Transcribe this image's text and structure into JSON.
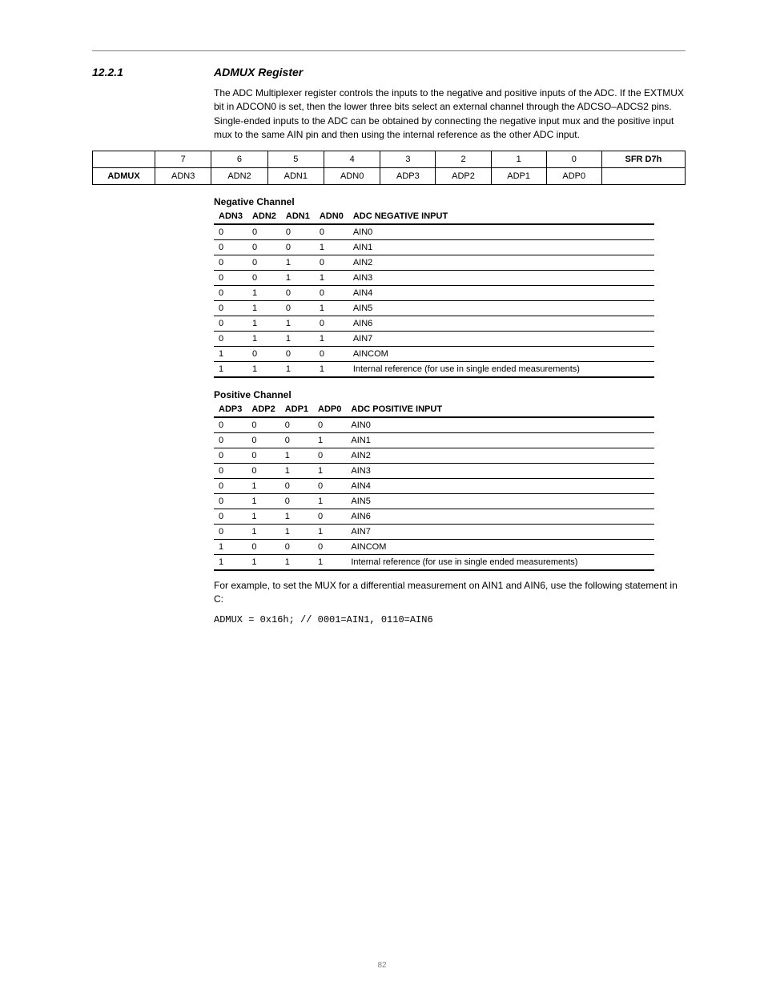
{
  "header": {
    "sectionNumber": "12.2.1",
    "sectionTitle": "ADMUX Register",
    "intro": "The ADC Multiplexer register controls the inputs to the negative and positive inputs of the ADC. If the EXTMUX bit in ADCON0 is set, then the lower three bits select an external channel through the ADCSO–ADCS2 pins. Single-ended inputs to the ADC can be obtained by connecting the negative input mux and the positive input mux to the same AIN pin and then using the internal reference as the other ADC input."
  },
  "registerTable": {
    "columns": [
      "7",
      "6",
      "5",
      "4",
      "3",
      "2",
      "1",
      "0"
    ],
    "rowLabel": "ADMUX",
    "row": [
      "ADN3",
      "ADN2",
      "ADN1",
      "ADN0",
      "ADP3",
      "ADP2",
      "ADP1",
      "ADP0"
    ],
    "sfrText": "SFR D7h"
  },
  "negChannel": {
    "caption": "Negative Channel",
    "headers": [
      "ADN3",
      "ADN2",
      "ADN1",
      "ADN0",
      "ADC NEGATIVE INPUT"
    ],
    "rows": [
      [
        "0",
        "0",
        "0",
        "0",
        "AIN0"
      ],
      [
        "0",
        "0",
        "0",
        "1",
        "AIN1"
      ],
      [
        "0",
        "0",
        "1",
        "0",
        "AIN2"
      ],
      [
        "0",
        "0",
        "1",
        "1",
        "AIN3"
      ],
      [
        "0",
        "1",
        "0",
        "0",
        "AIN4"
      ],
      [
        "0",
        "1",
        "0",
        "1",
        "AIN5"
      ],
      [
        "0",
        "1",
        "1",
        "0",
        "AIN6"
      ],
      [
        "0",
        "1",
        "1",
        "1",
        "AIN7"
      ],
      [
        "1",
        "0",
        "0",
        "0",
        "AINCOM"
      ],
      [
        "1",
        "1",
        "1",
        "1",
        "Internal reference (for use in single ended measurements)"
      ]
    ]
  },
  "posChannel": {
    "caption": "Positive Channel",
    "headers": [
      "ADP3",
      "ADP2",
      "ADP1",
      "ADP0",
      "ADC POSITIVE INPUT"
    ],
    "rows": [
      [
        "0",
        "0",
        "0",
        "0",
        "AIN0"
      ],
      [
        "0",
        "0",
        "0",
        "1",
        "AIN1"
      ],
      [
        "0",
        "0",
        "1",
        "0",
        "AIN2"
      ],
      [
        "0",
        "0",
        "1",
        "1",
        "AIN3"
      ],
      [
        "0",
        "1",
        "0",
        "0",
        "AIN4"
      ],
      [
        "0",
        "1",
        "0",
        "1",
        "AIN5"
      ],
      [
        "0",
        "1",
        "1",
        "0",
        "AIN6"
      ],
      [
        "0",
        "1",
        "1",
        "1",
        "AIN7"
      ],
      [
        "1",
        "0",
        "0",
        "0",
        "AINCOM"
      ],
      [
        "1",
        "1",
        "1",
        "1",
        "Internal reference (for use in single ended measurements)"
      ]
    ]
  },
  "example": {
    "text": "For example, to set the MUX for a differential measurement on AIN1 and AIN6, use the following statement in C:",
    "code": "ADMUX = 0x16h; // 0001=AIN1, 0110=AIN6"
  },
  "footer": {
    "page": "82"
  }
}
